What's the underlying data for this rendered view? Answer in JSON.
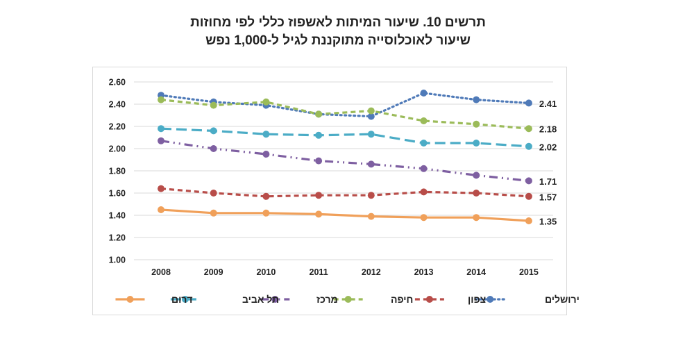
{
  "chart_data": {
    "type": "line",
    "title": "תרשים 10. שיעור המיתות לאשפוז כללי לפי מחוזות",
    "subtitle": "שיעור לאוכלוסייה מתוקננת לגיל ל-1,000 נפש",
    "xlabel": "",
    "ylabel": "",
    "categories": [
      "2008",
      "2009",
      "2010",
      "2011",
      "2012",
      "2013",
      "2014",
      "2015"
    ],
    "ylim": [
      1.0,
      2.6
    ],
    "yticks": [
      "1.00",
      "1.20",
      "1.40",
      "1.60",
      "1.80",
      "2.00",
      "2.20",
      "2.40",
      "2.60"
    ],
    "grid": true,
    "legend_position": "bottom",
    "series": [
      {
        "name": "ירושלים",
        "color": "#4f7ab8",
        "dash": "dot",
        "values": [
          2.48,
          2.42,
          2.39,
          2.31,
          2.29,
          2.5,
          2.44,
          2.41
        ],
        "end_label": "2.41"
      },
      {
        "name": "צפון",
        "color": "#b84d49",
        "dash": "dash",
        "values": [
          1.64,
          1.6,
          1.57,
          1.58,
          1.58,
          1.61,
          1.6,
          1.57
        ],
        "end_label": "1.57"
      },
      {
        "name": "חיפה",
        "color": "#9bbb59",
        "dash": "dash",
        "values": [
          2.44,
          2.39,
          2.42,
          2.31,
          2.34,
          2.25,
          2.22,
          2.18
        ],
        "end_label": "2.18"
      },
      {
        "name": "מרכז",
        "color": "#7e5fa1",
        "dash": "dashdotdot",
        "values": [
          2.07,
          2.0,
          1.95,
          1.89,
          1.86,
          1.82,
          1.76,
          1.71
        ],
        "end_label": "1.71"
      },
      {
        "name": "תל אביב",
        "color": "#4bacc6",
        "dash": "longdash",
        "values": [
          2.18,
          2.16,
          2.13,
          2.12,
          2.13,
          2.05,
          2.05,
          2.02
        ],
        "end_label": "2.02"
      },
      {
        "name": "דרום",
        "color": "#f0a05a",
        "dash": "solid",
        "values": [
          1.45,
          1.42,
          1.42,
          1.41,
          1.39,
          1.38,
          1.38,
          1.35
        ],
        "end_label": "1.35"
      }
    ]
  }
}
